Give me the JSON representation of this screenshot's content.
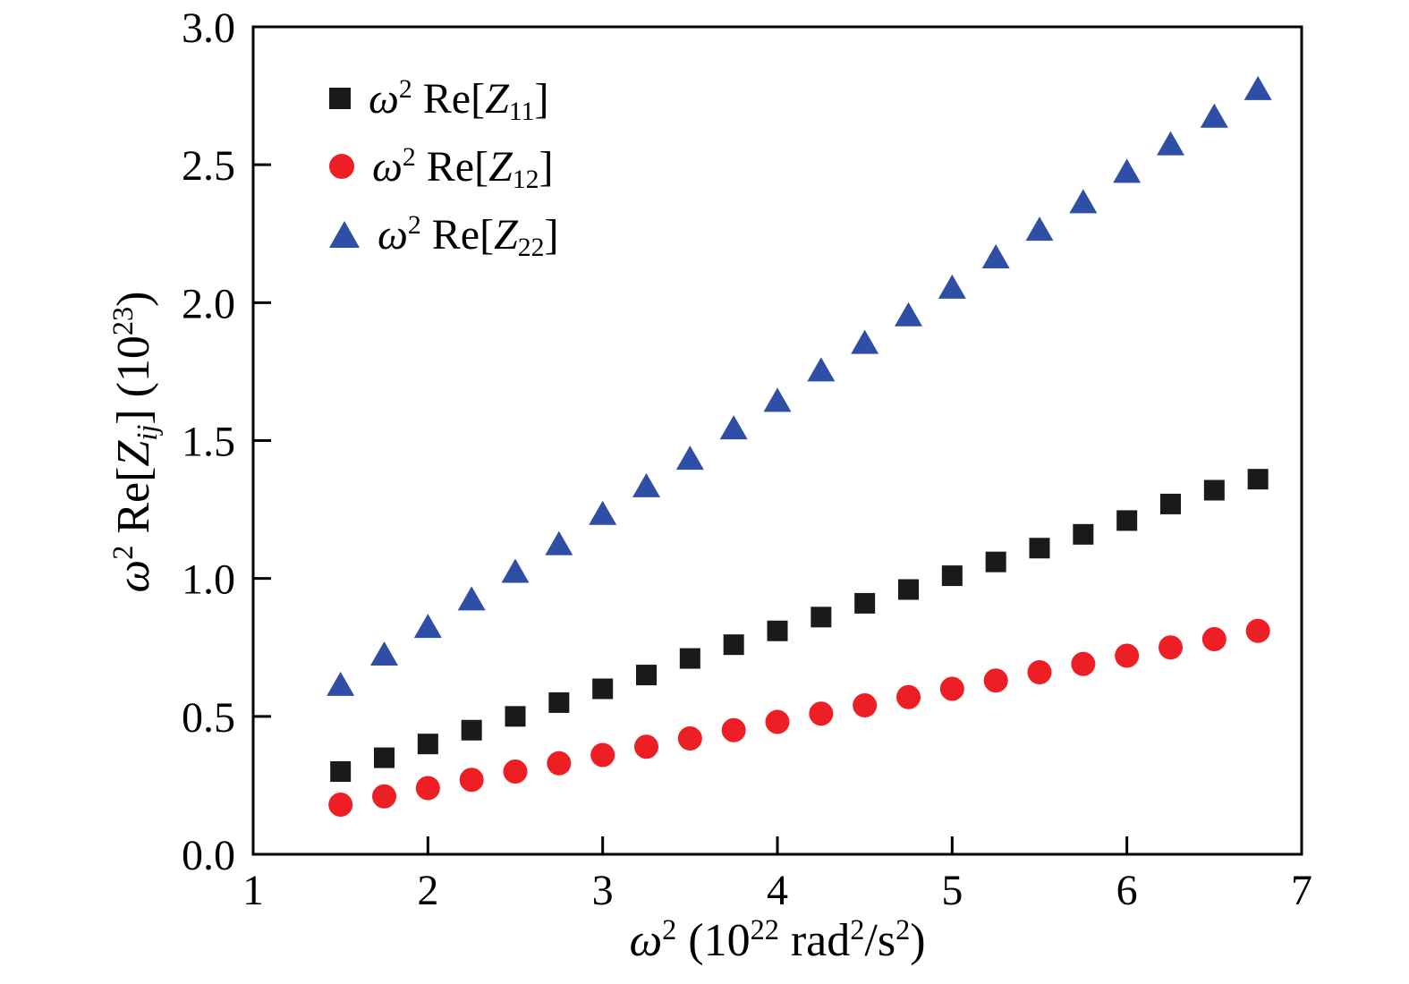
{
  "page": {
    "background": "#ffffff"
  },
  "chart_data": {
    "type": "scatter",
    "title": "",
    "xlabel": "ω² (10²² rad²/s²)",
    "ylabel": "ω² Re[Z_ij] (10²³)",
    "xlim": [
      1,
      7
    ],
    "ylim": [
      0,
      3
    ],
    "grid": false,
    "legend_position": "top-left-inside",
    "x_tick_labels": [
      "1",
      "2",
      "3",
      "4",
      "5",
      "6",
      "7"
    ],
    "y_tick_labels": [
      "0.0",
      "0.5",
      "1.0",
      "1.5",
      "2.0",
      "2.5",
      "3.0"
    ],
    "x": [
      1.5,
      1.75,
      2.0,
      2.25,
      2.5,
      2.75,
      3.0,
      3.25,
      3.5,
      3.75,
      4.0,
      4.25,
      4.5,
      4.75,
      5.0,
      5.25,
      5.5,
      5.75,
      6.0,
      6.25,
      6.5,
      6.75
    ],
    "series": [
      {
        "name": "ω² Re[Z₁₁]",
        "marker": "square",
        "color": "#1a1a1a",
        "values": [
          0.3,
          0.35,
          0.4,
          0.45,
          0.5,
          0.55,
          0.6,
          0.65,
          0.71,
          0.76,
          0.81,
          0.86,
          0.91,
          0.96,
          1.01,
          1.06,
          1.11,
          1.16,
          1.21,
          1.27,
          1.32,
          1.36
        ]
      },
      {
        "name": "ω² Re[Z₁₂]",
        "marker": "circle",
        "color": "#ed1f24",
        "values": [
          0.18,
          0.21,
          0.24,
          0.27,
          0.3,
          0.33,
          0.36,
          0.39,
          0.42,
          0.45,
          0.48,
          0.51,
          0.54,
          0.57,
          0.6,
          0.63,
          0.66,
          0.69,
          0.72,
          0.75,
          0.78,
          0.81
        ]
      },
      {
        "name": "ω² Re[Z₂₂]",
        "marker": "triangle",
        "color": "#2e4fa5",
        "values": [
          0.61,
          0.72,
          0.82,
          0.92,
          1.02,
          1.12,
          1.23,
          1.33,
          1.43,
          1.54,
          1.64,
          1.75,
          1.85,
          1.95,
          2.05,
          2.16,
          2.26,
          2.36,
          2.47,
          2.57,
          2.67,
          2.77
        ]
      }
    ],
    "label_parts": {
      "xlabel": [
        [
          "i",
          "ω"
        ],
        [
          "sup",
          "2"
        ],
        [
          "n",
          " (10"
        ],
        [
          "sup",
          "22"
        ],
        [
          "n",
          " rad"
        ],
        [
          "sup",
          "2"
        ],
        [
          "n",
          "/s"
        ],
        [
          "sup",
          "2"
        ],
        [
          "n",
          ")"
        ]
      ],
      "ylabel": [
        [
          "i",
          "ω"
        ],
        [
          "sup",
          "2"
        ],
        [
          "n",
          " Re["
        ],
        [
          "i",
          "Z"
        ],
        [
          "subi",
          "ij"
        ],
        [
          "n",
          "] (10"
        ],
        [
          "sup",
          "23"
        ],
        [
          "n",
          ")"
        ]
      ],
      "legend": [
        [
          [
            "i",
            "ω"
          ],
          [
            "sup",
            "2"
          ],
          [
            "n",
            " Re["
          ],
          [
            "i",
            "Z"
          ],
          [
            "sub",
            "11"
          ],
          [
            "n",
            "]"
          ]
        ],
        [
          [
            "i",
            "ω"
          ],
          [
            "sup",
            "2"
          ],
          [
            "n",
            " Re["
          ],
          [
            "i",
            "Z"
          ],
          [
            "sub",
            "12"
          ],
          [
            "n",
            "]"
          ]
        ],
        [
          [
            "i",
            "ω"
          ],
          [
            "sup",
            "2"
          ],
          [
            "n",
            " Re["
          ],
          [
            "i",
            "Z"
          ],
          [
            "sub",
            "22"
          ],
          [
            "n",
            "]"
          ]
        ]
      ]
    },
    "axis_color": "#000000",
    "tick_font_size": 48
  }
}
